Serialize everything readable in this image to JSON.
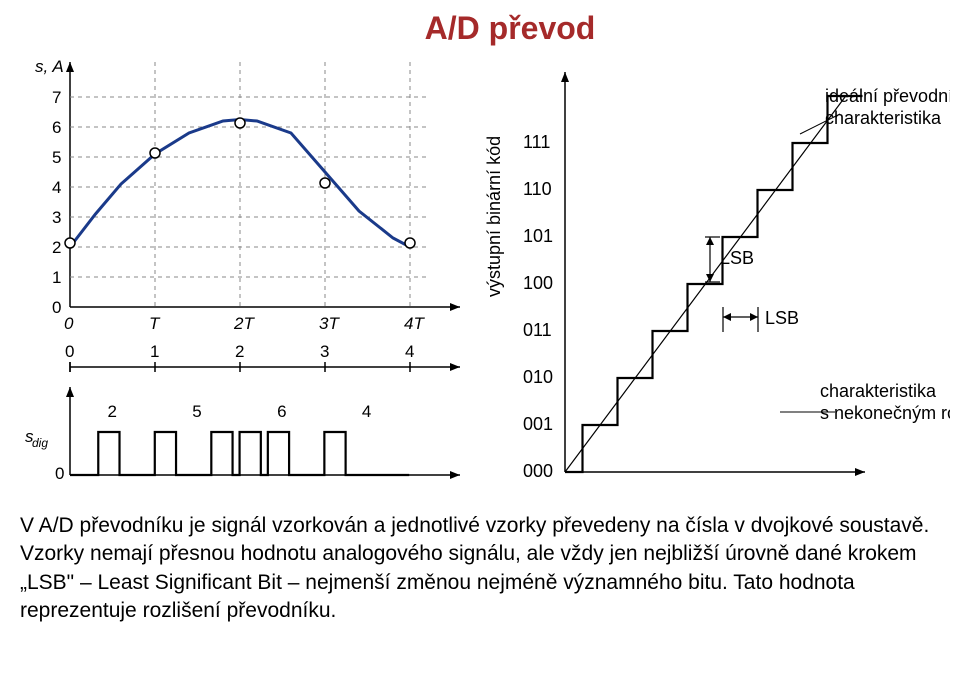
{
  "title": "A/D převod",
  "left_top_chart": {
    "type": "line+scatter",
    "y_axis_label": "s, A",
    "y_ticks": [
      0,
      1,
      2,
      3,
      4,
      5,
      6,
      7
    ],
    "x_ticks": [
      "0",
      "T",
      "2T",
      "3T",
      "4T"
    ],
    "grid_color": "#999999",
    "axis_color": "#000000",
    "curve_color": "#1a3a8a",
    "curve_width": 3,
    "samples": [
      {
        "x": 0,
        "y": 2
      },
      {
        "x": 1,
        "y": 5
      },
      {
        "x": 2,
        "y": 6
      },
      {
        "x": 3,
        "y": 4
      },
      {
        "x": 4,
        "y": 2
      }
    ],
    "curve_points": [
      {
        "x": 0,
        "y": 2
      },
      {
        "x": 0.3,
        "y": 3.1
      },
      {
        "x": 0.6,
        "y": 4.1
      },
      {
        "x": 1,
        "y": 5.1
      },
      {
        "x": 1.4,
        "y": 5.8
      },
      {
        "x": 1.8,
        "y": 6.2
      },
      {
        "x": 2,
        "y": 6.25
      },
      {
        "x": 2.2,
        "y": 6.2
      },
      {
        "x": 2.6,
        "y": 5.8
      },
      {
        "x": 3,
        "y": 4.5
      },
      {
        "x": 3.4,
        "y": 3.2
      },
      {
        "x": 3.8,
        "y": 2.3
      },
      {
        "x": 4,
        "y": 2
      }
    ]
  },
  "left_mid_axis": {
    "x_ticks": [
      "0",
      "1",
      "2",
      "3",
      "4"
    ]
  },
  "left_bottom_chart": {
    "type": "step",
    "y_axis_label": "s_dig",
    "y_ticks": [
      "0"
    ],
    "values": [
      2,
      5,
      6,
      4
    ],
    "value_labels": [
      "2",
      "5",
      "6",
      "4"
    ],
    "axis_color": "#000000",
    "line_width": 2.2
  },
  "right_chart": {
    "type": "staircase",
    "y_axis_label": "výstupní binární kód",
    "y_ticks": [
      "000",
      "001",
      "010",
      "011",
      "100",
      "101",
      "110",
      "111"
    ],
    "label_top": "ideální převodní\ncharakteristika",
    "label_bottom": "charakteristika\ns nekonečným rozlišením",
    "lsb_label": "LSB",
    "axis_color": "#000000",
    "grid_color": "#cccccc",
    "step_color": "#000000",
    "diag_color": "#000000",
    "line_width": 2.2
  },
  "body_text": "V A/D převodníku je signál vzorkován a jednotlivé vzorky převedeny na čísla v dvojkové soustavě. Vzorky nemají přesnou hodnotu analogového signálu, ale vždy jen nejbližší úrovně dané krokem „LSB\" – Least Significant Bit – nejmenší změnou nejméně významného bitu. Tato hodnota reprezentuje rozlišení převodníku.",
  "colors": {
    "title_color": "#a52a2a",
    "text_color": "#000000",
    "background": "#ffffff"
  },
  "fonts": {
    "title_size": 32,
    "body_size": 21,
    "tick_size": 17
  }
}
